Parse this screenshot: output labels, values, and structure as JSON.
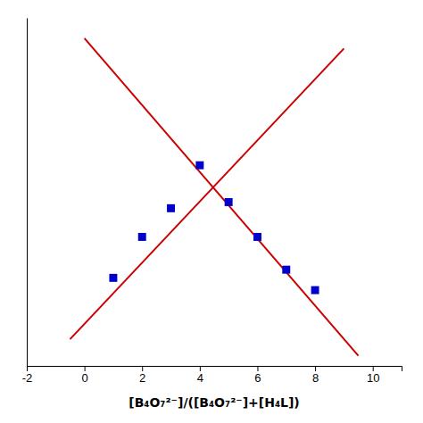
{
  "chart_data": {
    "type": "scatter",
    "xlabel": "[B₄O₇²⁻]/([B₄O₇²⁻]+[H₄L])",
    "series": [
      {
        "type": "line",
        "color": "#cc0000",
        "x": [
          -0.5,
          9.0
        ],
        "values": [
          -0.12,
          1.3
        ]
      },
      {
        "type": "line",
        "color": "#cc0000",
        "x": [
          0.0,
          9.5
        ],
        "values": [
          1.35,
          -0.2
        ]
      },
      {
        "type": "scatter",
        "color": "#0000cc",
        "marker": "square",
        "x": [
          1.0,
          2.0,
          3.0,
          4.0,
          5.0,
          6.0,
          7.0,
          8.0
        ],
        "values": [
          0.18,
          0.38,
          0.52,
          0.73,
          0.55,
          0.38,
          0.22,
          0.12
        ]
      }
    ],
    "xlim": [
      -2,
      11
    ],
    "ylim": [
      -0.25,
      1.45
    ],
    "xticks": [
      -2,
      0,
      2,
      4,
      6,
      8,
      10
    ],
    "tick_labels": "x",
    "grid": false
  }
}
